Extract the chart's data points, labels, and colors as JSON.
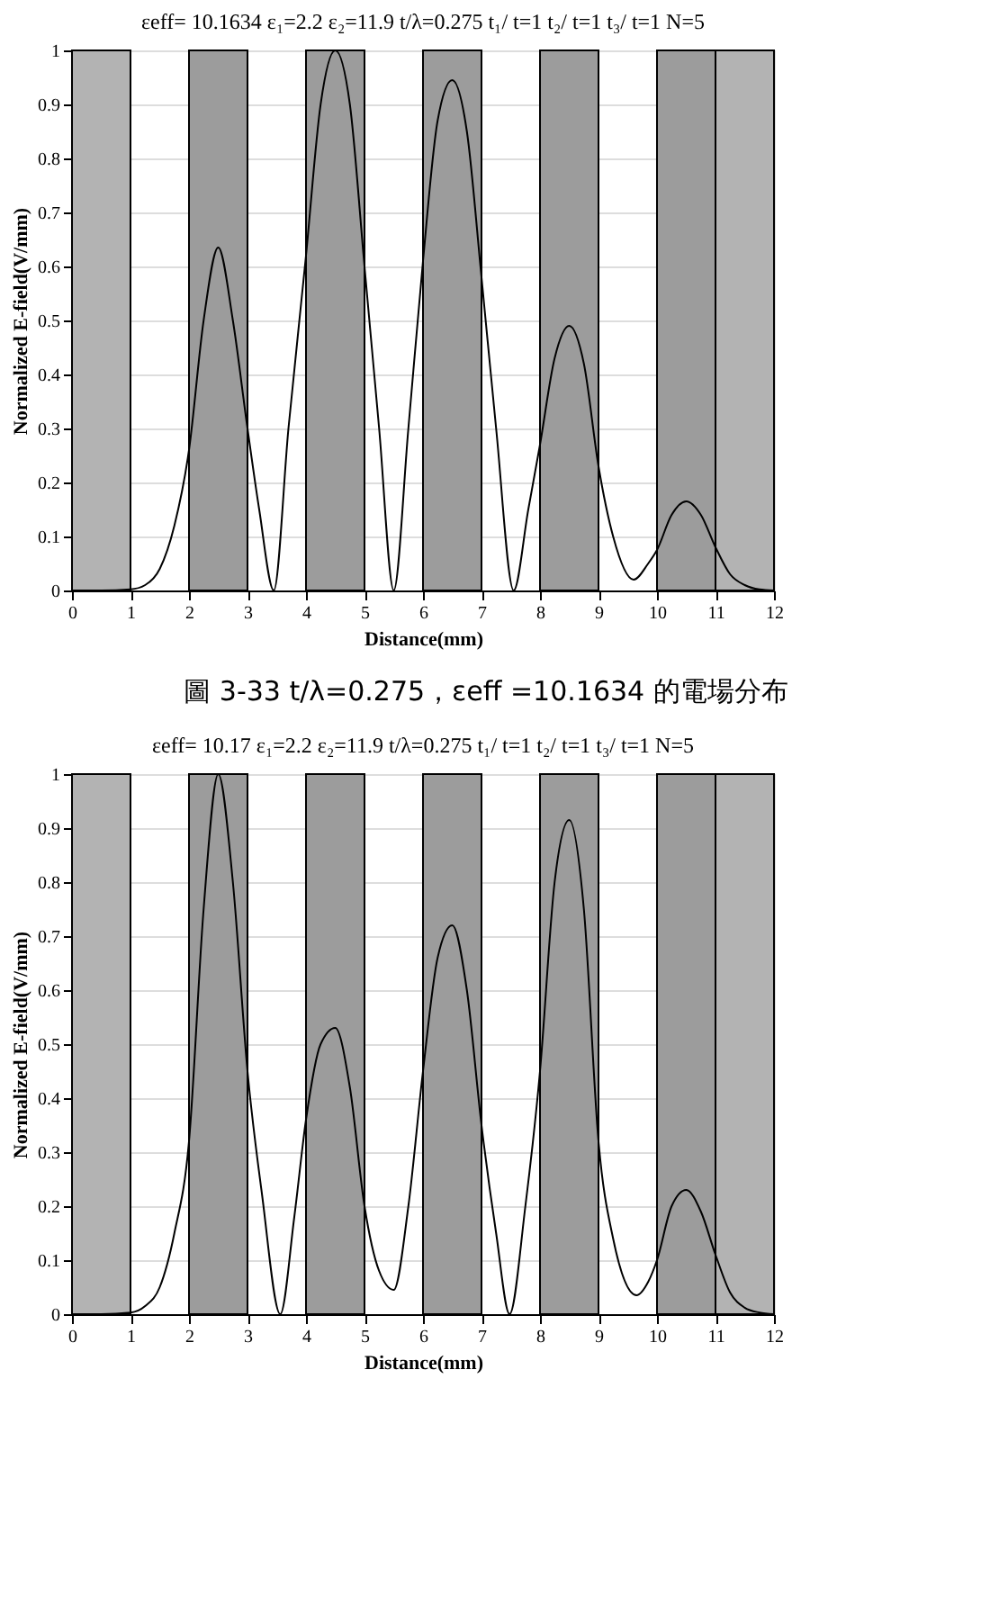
{
  "chart_data": [
    {
      "type": "line",
      "title": "εeff= 10.1634  ε₁=2.2  ε₂=11.9  t/λ=0.275 t₁/ t=1 t₂/ t=1 t₃/ t=1 N=5",
      "xlabel": "Distance(mm)",
      "ylabel": "Normalized E-field(V/mm)",
      "xlim": [
        0,
        12
      ],
      "ylim": [
        0,
        1
      ],
      "xticks": [
        0,
        1,
        2,
        3,
        4,
        5,
        6,
        7,
        8,
        9,
        10,
        11,
        12
      ],
      "yticks": [
        0,
        0.1,
        0.2,
        0.3,
        0.4,
        0.5,
        0.6,
        0.7,
        0.8,
        0.9,
        1
      ],
      "grid": "y",
      "marker": "none",
      "line_style": "solid",
      "bands": [
        {
          "axis": "x",
          "from": 0,
          "to": 1,
          "color": "#b3b3b3"
        },
        {
          "axis": "x",
          "from": 2,
          "to": 3,
          "color": "#9c9c9c"
        },
        {
          "axis": "x",
          "from": 4,
          "to": 5,
          "color": "#9c9c9c"
        },
        {
          "axis": "x",
          "from": 6,
          "to": 7,
          "color": "#9c9c9c"
        },
        {
          "axis": "x",
          "from": 8,
          "to": 9,
          "color": "#9c9c9c"
        },
        {
          "axis": "x",
          "from": 10,
          "to": 11,
          "color": "#9c9c9c"
        },
        {
          "axis": "x",
          "from": 11,
          "to": 12,
          "color": "#b3b3b3"
        }
      ],
      "annotations": [
        "圖 3-33 t/λ=0.275，εeff =10.1634 的電場分布"
      ],
      "series": [
        {
          "color": "#000000",
          "x": [
            0,
            0.5,
            1,
            1.25,
            1.5,
            1.75,
            2,
            2.25,
            2.5,
            2.75,
            3,
            3.2,
            3.45,
            3.7,
            4,
            4.25,
            4.5,
            4.75,
            5,
            5.25,
            5.5,
            5.75,
            6,
            6.25,
            6.5,
            6.75,
            7,
            7.25,
            7.55,
            7.8,
            8,
            8.25,
            8.5,
            8.75,
            9,
            9.25,
            9.6,
            9.85,
            10,
            10.25,
            10.5,
            10.75,
            11,
            11.25,
            11.5,
            11.75,
            12
          ],
          "values": [
            0,
            0,
            0.002,
            0.01,
            0.04,
            0.12,
            0.26,
            0.5,
            0.635,
            0.5,
            0.3,
            0.15,
            0,
            0.3,
            0.62,
            0.9,
            1.0,
            0.9,
            0.6,
            0.3,
            0,
            0.3,
            0.61,
            0.87,
            0.945,
            0.85,
            0.58,
            0.3,
            0,
            0.15,
            0.27,
            0.43,
            0.49,
            0.42,
            0.23,
            0.1,
            0.02,
            0.05,
            0.075,
            0.14,
            0.165,
            0.14,
            0.08,
            0.03,
            0.01,
            0.002,
            0
          ]
        }
      ]
    },
    {
      "type": "line",
      "title": "εeff= 10.17  ε₁=2.2  ε₂=11.9  t/λ=0.275 t₁/ t=1 t₂/ t=1 t₃/ t=1 N=5",
      "xlabel": "Distance(mm)",
      "ylabel": "Normalized E-field(V/mm)",
      "xlim": [
        0,
        12
      ],
      "ylim": [
        0,
        1
      ],
      "xticks": [
        0,
        1,
        2,
        3,
        4,
        5,
        6,
        7,
        8,
        9,
        10,
        11,
        12
      ],
      "yticks": [
        0,
        0.1,
        0.2,
        0.3,
        0.4,
        0.5,
        0.6,
        0.7,
        0.8,
        0.9,
        1
      ],
      "grid": "y",
      "marker": "none",
      "line_style": "solid",
      "bands": [
        {
          "axis": "x",
          "from": 0,
          "to": 1,
          "color": "#b3b3b3"
        },
        {
          "axis": "x",
          "from": 2,
          "to": 3,
          "color": "#9c9c9c"
        },
        {
          "axis": "x",
          "from": 4,
          "to": 5,
          "color": "#9c9c9c"
        },
        {
          "axis": "x",
          "from": 6,
          "to": 7,
          "color": "#9c9c9c"
        },
        {
          "axis": "x",
          "from": 8,
          "to": 9,
          "color": "#9c9c9c"
        },
        {
          "axis": "x",
          "from": 10,
          "to": 11,
          "color": "#9c9c9c"
        },
        {
          "axis": "x",
          "from": 11,
          "to": 12,
          "color": "#b3b3b3"
        }
      ],
      "series": [
        {
          "color": "#000000",
          "x": [
            0,
            0.5,
            1,
            1.25,
            1.5,
            1.75,
            2,
            2.25,
            2.5,
            2.75,
            3,
            3.25,
            3.56,
            3.8,
            4,
            4.25,
            4.5,
            4.75,
            5,
            5.25,
            5.5,
            5.75,
            6,
            6.25,
            6.5,
            6.75,
            7,
            7.25,
            7.48,
            7.75,
            8,
            8.25,
            8.5,
            8.75,
            9,
            9.25,
            9.65,
            9.85,
            10,
            10.25,
            10.5,
            10.75,
            11,
            11.25,
            11.5,
            11.75,
            12
          ],
          "values": [
            0,
            0,
            0.003,
            0.015,
            0.05,
            0.15,
            0.32,
            0.75,
            1.0,
            0.8,
            0.45,
            0.22,
            0,
            0.18,
            0.36,
            0.5,
            0.53,
            0.42,
            0.2,
            0.08,
            0.045,
            0.2,
            0.45,
            0.66,
            0.72,
            0.6,
            0.35,
            0.15,
            0,
            0.2,
            0.45,
            0.8,
            0.915,
            0.75,
            0.32,
            0.14,
            0.035,
            0.06,
            0.1,
            0.2,
            0.23,
            0.19,
            0.11,
            0.04,
            0.012,
            0.003,
            0
          ]
        }
      ]
    }
  ]
}
